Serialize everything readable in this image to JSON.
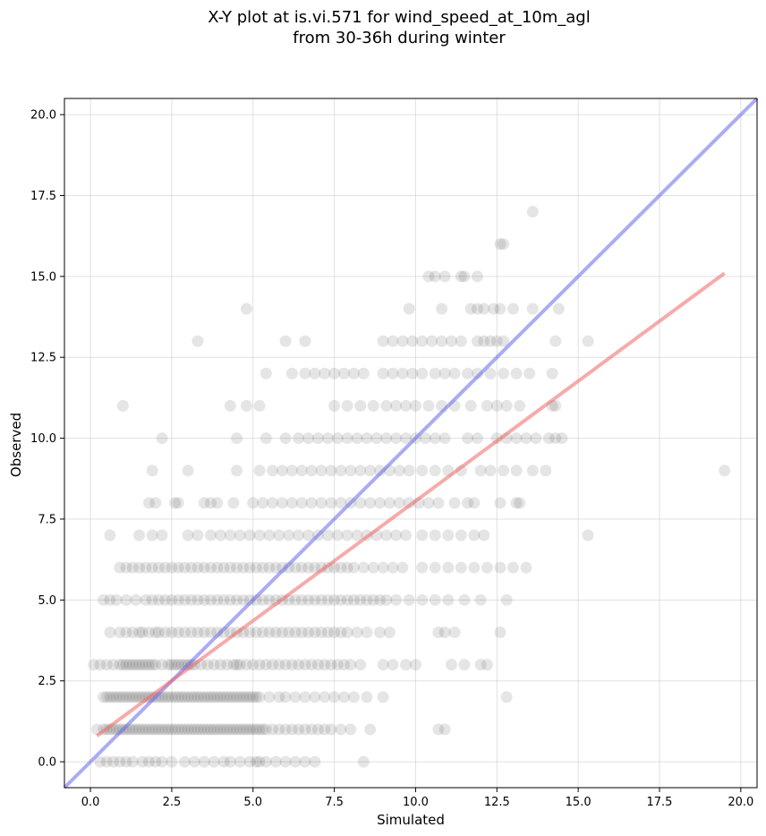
{
  "chart_data": {
    "type": "scatter",
    "title": "X-Y plot at is.vi.571 for wind_speed_at_10m_agl",
    "subtitle": "from 30-36h during winter",
    "xlabel": "Simulated",
    "ylabel": "Observed",
    "xlim": [
      -0.8,
      20.5
    ],
    "ylim": [
      -0.8,
      20.5
    ],
    "xticks": [
      "0.0",
      "2.5",
      "5.0",
      "7.5",
      "10.0",
      "12.5",
      "15.0",
      "17.5",
      "20.0"
    ],
    "yticks": [
      "0.0",
      "2.5",
      "5.0",
      "7.5",
      "10.0",
      "12.5",
      "15.0",
      "17.5",
      "20.0"
    ],
    "grid": true,
    "colors": {
      "points": "#333333",
      "identity_line": "#6666ee",
      "fit_line": "#ee6666"
    },
    "rows": [
      {
        "y": 0,
        "x": [
          0.3,
          0.5,
          0.7,
          0.9,
          1.1,
          1.3,
          1.6,
          1.8,
          2.0,
          2.2,
          2.5,
          2.9,
          3.2,
          3.5,
          3.8,
          4.1,
          4.3,
          4.6,
          4.9,
          5.1,
          5.2,
          5.4,
          5.7,
          6.0,
          6.3,
          6.6,
          6.9,
          8.4
        ]
      },
      {
        "y": 1,
        "x": [
          0.2,
          0.4,
          0.5,
          0.6,
          0.7,
          0.8,
          0.9,
          1.0,
          1.1,
          1.2,
          1.3,
          1.4,
          1.5,
          1.6,
          1.7,
          1.8,
          1.9,
          2.0,
          2.1,
          2.2,
          2.3,
          2.4,
          2.5,
          2.6,
          2.7,
          2.8,
          2.9,
          3.0,
          3.1,
          3.2,
          3.3,
          3.4,
          3.5,
          3.6,
          3.7,
          3.8,
          3.9,
          4.0,
          4.1,
          4.2,
          4.3,
          4.4,
          4.5,
          4.6,
          4.7,
          4.8,
          4.9,
          5.0,
          5.1,
          5.2,
          5.3,
          5.4,
          5.6,
          5.8,
          6.0,
          6.2,
          6.4,
          6.6,
          6.8,
          7.0,
          7.2,
          7.4,
          7.7,
          8.0,
          8.6,
          10.7,
          10.9
        ]
      },
      {
        "y": 2,
        "x": [
          0.4,
          0.5,
          0.6,
          0.7,
          0.8,
          0.9,
          1.0,
          1.1,
          1.2,
          1.3,
          1.4,
          1.5,
          1.6,
          1.7,
          1.8,
          1.9,
          2.0,
          2.1,
          2.2,
          2.3,
          2.4,
          2.5,
          2.6,
          2.7,
          2.8,
          2.9,
          3.0,
          3.1,
          3.2,
          3.3,
          3.4,
          3.5,
          3.6,
          3.7,
          3.8,
          3.9,
          4.0,
          4.1,
          4.2,
          4.3,
          4.4,
          4.5,
          4.6,
          4.7,
          4.8,
          4.9,
          5.0,
          5.1,
          5.2,
          5.5,
          5.8,
          6.0,
          6.3,
          6.6,
          6.9,
          7.2,
          7.5,
          7.8,
          8.1,
          8.5,
          9.0,
          12.8
        ]
      },
      {
        "y": 3,
        "x": [
          0.1,
          0.3,
          0.5,
          0.7,
          0.9,
          1.0,
          1.1,
          1.2,
          1.3,
          1.4,
          1.5,
          1.6,
          1.7,
          1.8,
          1.9,
          2.0,
          2.2,
          2.4,
          2.5,
          2.6,
          2.7,
          2.8,
          2.9,
          3.0,
          3.1,
          3.2,
          3.4,
          3.6,
          3.8,
          4.0,
          4.2,
          4.4,
          4.5,
          4.6,
          4.8,
          5.0,
          5.2,
          5.4,
          5.6,
          5.8,
          6.0,
          6.2,
          6.4,
          6.6,
          6.8,
          7.0,
          7.2,
          7.4,
          7.6,
          7.8,
          8.0,
          8.3,
          9.0,
          9.3,
          9.7,
          10.0,
          11.1,
          11.5,
          12.0,
          12.2
        ]
      },
      {
        "y": 4,
        "x": [
          0.6,
          0.9,
          1.1,
          1.3,
          1.5,
          1.6,
          1.8,
          2.0,
          2.1,
          2.3,
          2.5,
          2.7,
          2.9,
          3.1,
          3.3,
          3.5,
          3.7,
          3.9,
          4.1,
          4.3,
          4.5,
          4.7,
          4.9,
          5.1,
          5.3,
          5.5,
          5.7,
          5.9,
          6.1,
          6.3,
          6.5,
          6.7,
          6.9,
          7.1,
          7.3,
          7.5,
          7.7,
          7.9,
          8.2,
          8.5,
          8.9,
          9.2,
          10.7,
          10.9,
          11.2,
          12.6
        ]
      },
      {
        "y": 5,
        "x": [
          0.4,
          0.6,
          0.8,
          1.1,
          1.4,
          1.7,
          1.9,
          2.1,
          2.3,
          2.5,
          2.7,
          2.9,
          3.1,
          3.3,
          3.5,
          3.7,
          3.9,
          4.1,
          4.3,
          4.5,
          4.7,
          4.9,
          5.1,
          5.3,
          5.5,
          5.7,
          5.9,
          6.1,
          6.3,
          6.5,
          6.7,
          6.9,
          7.1,
          7.3,
          7.5,
          7.7,
          7.9,
          8.1,
          8.3,
          8.5,
          8.7,
          8.9,
          9.1,
          9.4,
          9.8,
          10.2,
          10.6,
          11.0,
          11.5,
          12.0,
          12.8
        ]
      },
      {
        "y": 6,
        "x": [
          0.9,
          1.1,
          1.3,
          1.5,
          1.7,
          1.9,
          2.1,
          2.3,
          2.5,
          2.7,
          2.9,
          3.1,
          3.3,
          3.5,
          3.7,
          3.9,
          4.1,
          4.3,
          4.5,
          4.7,
          4.9,
          5.1,
          5.3,
          5.5,
          5.7,
          5.9,
          6.1,
          6.3,
          6.5,
          6.7,
          6.9,
          7.1,
          7.3,
          7.5,
          7.7,
          7.9,
          8.1,
          8.4,
          8.7,
          9.0,
          9.3,
          9.6,
          10.2,
          10.6,
          11.0,
          11.4,
          11.8,
          12.2,
          12.6,
          13.0,
          13.4
        ]
      },
      {
        "y": 7,
        "x": [
          0.6,
          1.5,
          1.9,
          2.2,
          3.0,
          3.3,
          3.7,
          4.0,
          4.3,
          4.6,
          4.9,
          5.2,
          5.5,
          5.8,
          6.1,
          6.4,
          6.7,
          7.0,
          7.3,
          7.6,
          7.9,
          8.2,
          8.5,
          8.8,
          9.1,
          9.4,
          9.7,
          10.2,
          10.6,
          11.0,
          11.4,
          11.8,
          12.1,
          15.3
        ]
      },
      {
        "y": 8,
        "x": [
          1.8,
          2.0,
          2.6,
          2.7,
          3.5,
          3.7,
          3.9,
          4.4,
          5.0,
          5.3,
          5.6,
          5.9,
          6.2,
          6.5,
          6.8,
          7.1,
          7.4,
          7.7,
          8.0,
          8.3,
          8.6,
          8.9,
          9.2,
          9.5,
          9.8,
          10.1,
          10.4,
          10.7,
          11.2,
          11.6,
          11.8,
          12.6,
          13.1,
          13.2
        ]
      },
      {
        "y": 9,
        "x": [
          1.9,
          3.0,
          4.5,
          5.2,
          5.6,
          5.9,
          6.2,
          6.5,
          6.8,
          7.1,
          7.4,
          7.7,
          8.0,
          8.3,
          8.6,
          8.9,
          9.2,
          9.5,
          9.8,
          10.2,
          10.6,
          11.0,
          11.4,
          12.0,
          12.3,
          12.7,
          13.1,
          13.6,
          14.0,
          19.5
        ]
      },
      {
        "y": 10,
        "x": [
          2.2,
          4.5,
          5.4,
          6.0,
          6.4,
          6.7,
          7.0,
          7.3,
          7.6,
          7.9,
          8.2,
          8.5,
          8.8,
          9.1,
          9.4,
          9.7,
          10.0,
          10.3,
          10.6,
          10.9,
          11.6,
          11.9,
          12.5,
          12.8,
          13.1,
          13.4,
          13.7,
          14.1,
          14.3,
          14.5
        ]
      },
      {
        "y": 11,
        "x": [
          1.0,
          4.3,
          4.8,
          5.2,
          7.5,
          7.9,
          8.3,
          8.7,
          9.1,
          9.4,
          9.7,
          10.0,
          10.4,
          10.8,
          11.2,
          11.7,
          12.2,
          12.5,
          12.8,
          13.2,
          14.2,
          14.3
        ]
      },
      {
        "y": 12,
        "x": [
          5.4,
          6.2,
          6.6,
          6.9,
          7.2,
          7.5,
          7.8,
          8.1,
          8.4,
          9.0,
          9.3,
          9.6,
          9.9,
          10.2,
          10.6,
          10.9,
          11.2,
          11.6,
          11.9,
          12.3,
          12.7,
          13.1,
          13.5,
          14.2
        ]
      },
      {
        "y": 13,
        "x": [
          3.3,
          6.0,
          6.6,
          9.0,
          9.3,
          9.6,
          9.9,
          10.2,
          10.5,
          10.8,
          11.1,
          11.4,
          11.9,
          12.1,
          12.3,
          12.5,
          12.7,
          14.3,
          15.3
        ]
      },
      {
        "y": 14,
        "x": [
          4.8,
          9.8,
          10.8,
          11.7,
          11.9,
          12.1,
          12.4,
          12.6,
          13.0,
          13.6,
          14.4
        ]
      },
      {
        "y": 15,
        "x": [
          10.4,
          10.6,
          10.9,
          11.4,
          11.5,
          11.9
        ]
      },
      {
        "y": 16,
        "x": [
          12.6,
          12.7
        ]
      },
      {
        "y": 17,
        "x": [
          13.6
        ]
      }
    ],
    "lines": [
      {
        "type": "identity",
        "x": [
          -0.8,
          20.5
        ],
        "y": [
          -0.8,
          20.5
        ]
      },
      {
        "type": "fit",
        "x": [
          0.2,
          19.5
        ],
        "y": [
          0.8,
          15.1
        ]
      }
    ]
  }
}
